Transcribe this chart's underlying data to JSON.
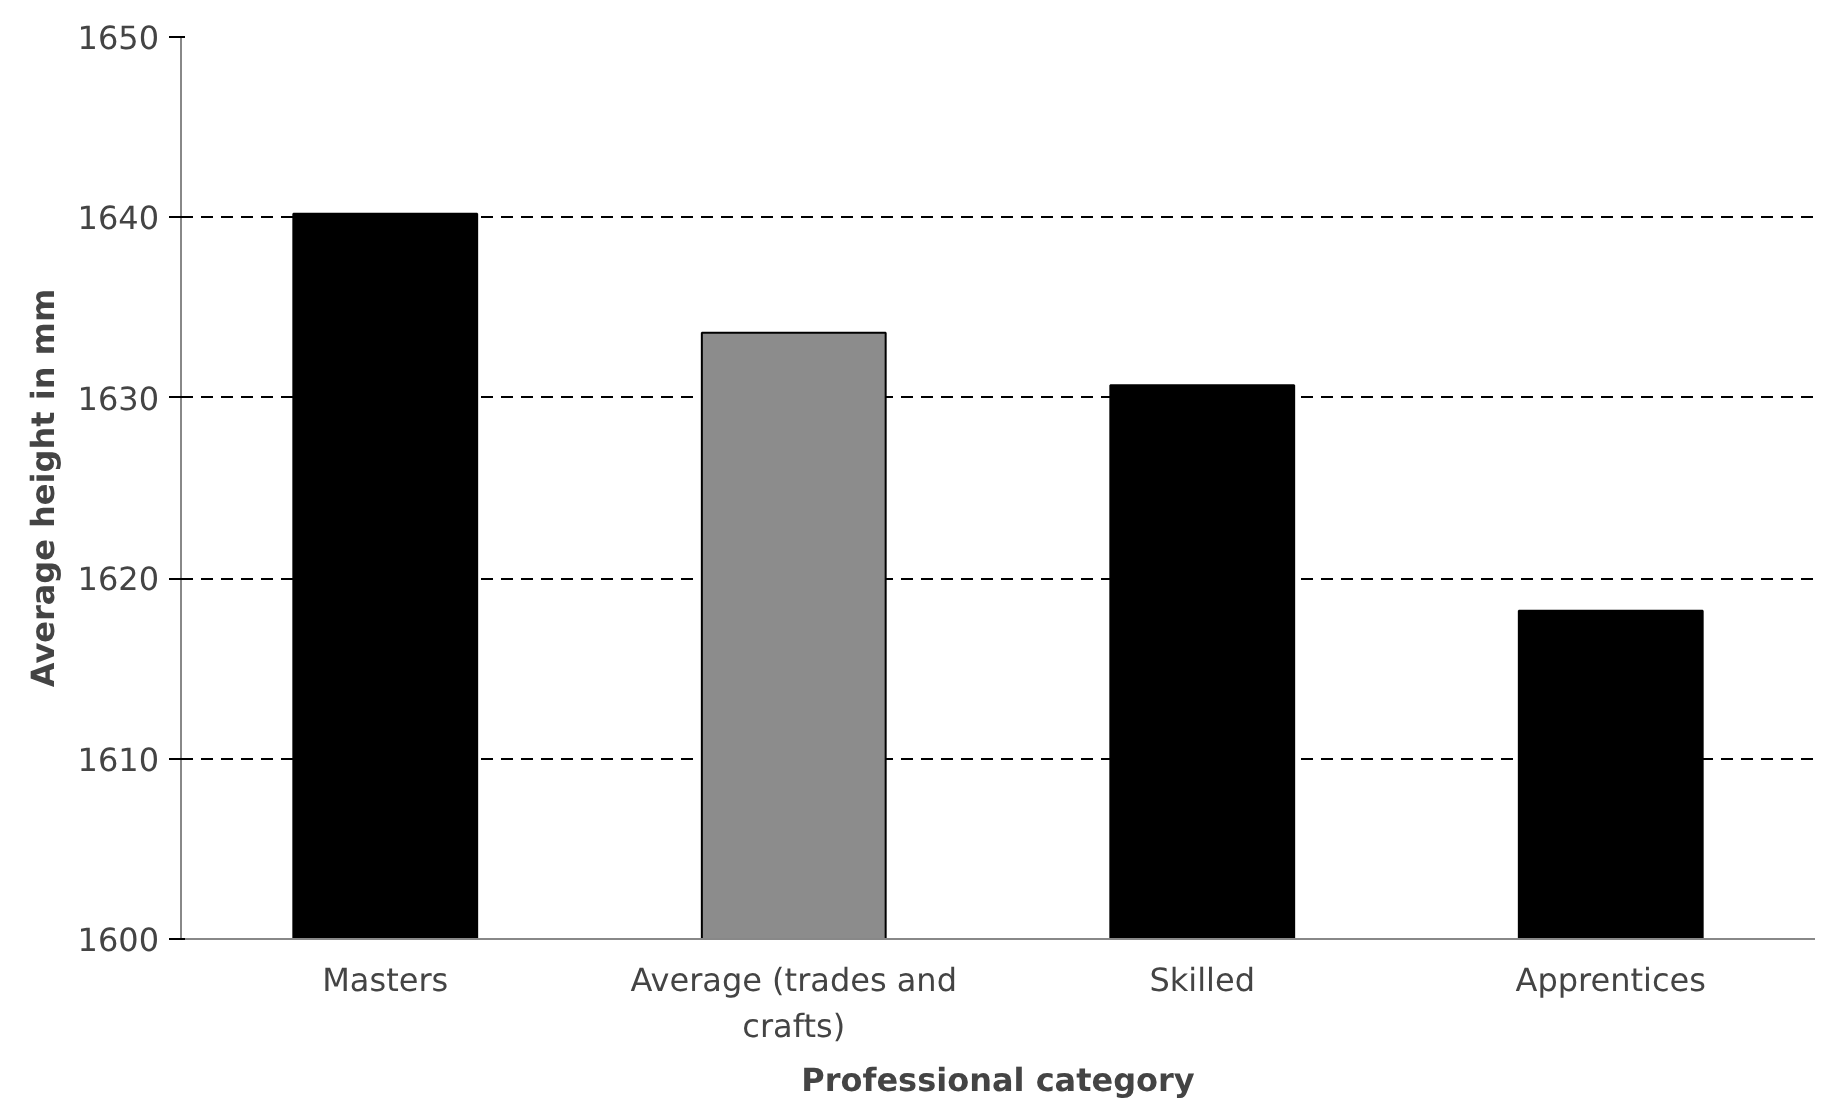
{
  "chart_data": {
    "type": "bar",
    "xlabel": "Professional category",
    "ylabel": "Average height in mm",
    "categories": [
      "Masters",
      "Average (trades and crafts)",
      "Skilled",
      "Apprentices"
    ],
    "values": [
      1640.2,
      1633.6,
      1630.7,
      1618.2
    ],
    "colors": [
      "#000000",
      "#8c8c8c",
      "#000000",
      "#000000"
    ],
    "ylim": [
      1600,
      1650
    ],
    "yticks": [
      1600,
      1610,
      1620,
      1630,
      1640,
      1650
    ],
    "grid": "y",
    "line_style": "dashed"
  }
}
